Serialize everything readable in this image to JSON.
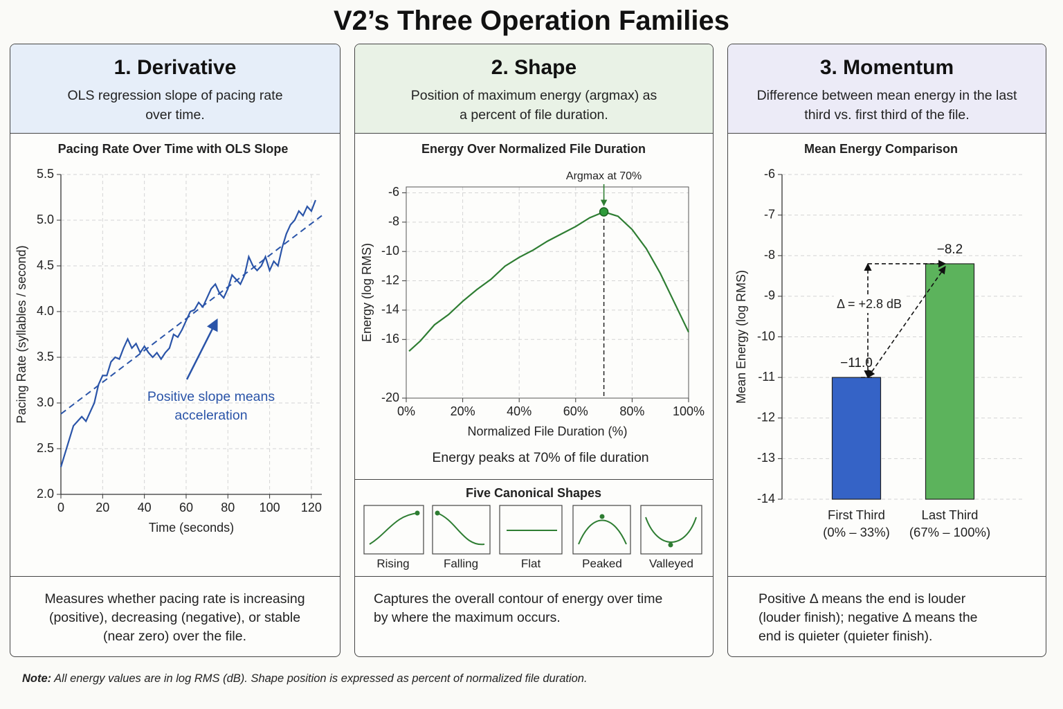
{
  "title": "V2’s Three Operation Families",
  "panels": [
    {
      "heading": "1. Derivative",
      "description": "OLS regression slope of pacing rate over time.",
      "footer": "Measures whether pacing rate is increasing (positive), decreasing (negative), or stable (near zero) over the file."
    },
    {
      "heading": "2. Shape",
      "description": "Position of maximum energy (argmax) as a percent of file duration.",
      "footer": "Captures the overall contour of energy over time by where the maximum occurs."
    },
    {
      "heading": "3. Momentum",
      "description": "Difference between mean energy in the last third vs. first third of the file.",
      "footer": "Positive Δ means the end is louder (louder finish); negative Δ means the end is quieter (quieter finish)."
    }
  ],
  "shapes": {
    "title": "Five Canonical Shapes",
    "labels": [
      "Rising",
      "Falling",
      "Flat",
      "Peaked",
      "Valleyed"
    ]
  },
  "note": {
    "label": "Note:",
    "text": "All energy values are in log RMS (dB). Shape position is expressed as percent of normalized file duration."
  },
  "chart_data": [
    {
      "type": "line",
      "title": "Pacing Rate Over Time with OLS Slope",
      "x_label": "Time (seconds)",
      "y_label": "Pacing Rate (syllables / second)",
      "x": [
        0,
        2,
        4,
        6,
        8,
        10,
        12,
        14,
        16,
        18,
        20,
        22,
        24,
        26,
        28,
        30,
        32,
        34,
        36,
        38,
        40,
        42,
        44,
        46,
        48,
        50,
        52,
        54,
        56,
        58,
        60,
        62,
        64,
        66,
        68,
        70,
        72,
        74,
        76,
        78,
        80,
        82,
        84,
        86,
        88,
        90,
        92,
        94,
        96,
        98,
        100,
        102,
        104,
        106,
        108,
        110,
        112,
        114,
        116,
        118,
        120,
        122
      ],
      "values": [
        2.3,
        2.45,
        2.6,
        2.75,
        2.8,
        2.85,
        2.8,
        2.9,
        3.0,
        3.2,
        3.3,
        3.3,
        3.45,
        3.5,
        3.48,
        3.6,
        3.7,
        3.6,
        3.65,
        3.55,
        3.62,
        3.55,
        3.5,
        3.55,
        3.48,
        3.55,
        3.6,
        3.75,
        3.72,
        3.8,
        3.9,
        4.0,
        4.02,
        4.1,
        4.05,
        4.15,
        4.25,
        4.3,
        4.2,
        4.15,
        4.25,
        4.4,
        4.35,
        4.3,
        4.4,
        4.6,
        4.5,
        4.45,
        4.5,
        4.6,
        4.45,
        4.55,
        4.5,
        4.7,
        4.85,
        4.95,
        5.0,
        5.1,
        5.05,
        5.15,
        5.1,
        5.22
      ],
      "color": "#2a54a8",
      "trend": {
        "x": [
          0,
          125
        ],
        "values": [
          2.88,
          5.05
        ]
      },
      "annotation": "Positive slope means acceleration",
      "xlim": [
        0,
        125
      ],
      "xticks": [
        0,
        20,
        40,
        60,
        80,
        100,
        120
      ],
      "ylim": [
        2,
        5.5
      ],
      "yticks": [
        {
          "value": 2,
          "label": "2.0"
        },
        2.5,
        {
          "value": 3,
          "label": "3.0"
        },
        3.5,
        {
          "value": 4,
          "label": "4.0"
        },
        4.5,
        {
          "value": 5,
          "label": "5.0"
        },
        5.5
      ],
      "grid": true
    },
    {
      "type": "line",
      "title": "Energy Over Normalized File Duration",
      "x_label": "Normalized File Duration (%)",
      "y_label": "Energy (log RMS)",
      "x": [
        1,
        5,
        10,
        15,
        20,
        25,
        30,
        35,
        40,
        45,
        50,
        55,
        60,
        65,
        70,
        75,
        80,
        85,
        90,
        95,
        100
      ],
      "values": [
        -16.8,
        -16.1,
        -15.0,
        -14.3,
        -13.4,
        -12.6,
        -11.9,
        -11.0,
        -10.4,
        -9.9,
        -9.3,
        -8.8,
        -8.3,
        -7.7,
        -7.3,
        -7.6,
        -8.5,
        -9.8,
        -11.5,
        -13.5,
        -15.5
      ],
      "color": "#2e7d32",
      "annotation": "Argmax at 70%",
      "caption": "Energy peaks at 70% of file duration",
      "xlim": [
        0,
        100
      ],
      "xticks": [
        {
          "value": 0,
          "label": "0%"
        },
        {
          "value": 20,
          "label": "20%"
        },
        {
          "value": 40,
          "label": "40%"
        },
        {
          "value": 60,
          "label": "60%"
        },
        {
          "value": 80,
          "label": "80%"
        },
        {
          "value": 100,
          "label": "100%"
        }
      ],
      "ylim": [
        -20,
        -5.6
      ],
      "yticks": [
        -6,
        -8,
        -10,
        -12,
        -14,
        -16,
        -20
      ],
      "grid": true
    },
    {
      "type": "bar",
      "title": "Mean Energy Comparison",
      "y_label": "Mean Energy (log RMS)",
      "categories": [
        "First Third",
        "Last Third"
      ],
      "category_notes": [
        "(0% – 33%)",
        "(67% – 100%)"
      ],
      "values": [
        -11.0,
        -8.2
      ],
      "value_labels": [
        "−11.0",
        "−8.2"
      ],
      "colors": [
        "#3563c6",
        "#5cb35c"
      ],
      "annotation": "Δ = +2.8 dB",
      "ylim": [
        -14,
        -6
      ],
      "yticks": [
        -6,
        -7,
        -8,
        -9,
        -10,
        -11,
        -12,
        -13,
        -14
      ],
      "grid": true
    }
  ]
}
